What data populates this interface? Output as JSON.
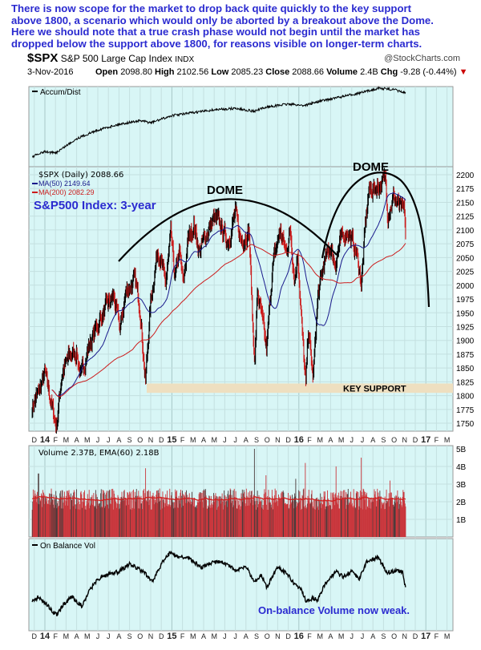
{
  "annotation_lines": [
    "There is now scope for the market to drop back quite quickly to the key support",
    "above 1800, a scenario which would only be aborted by a breakout above the Dome.",
    "Here we should note that a true crash phase would not begin until the market has",
    "dropped below the support above 1800, for reasons visible on longer-term charts."
  ],
  "header": {
    "symbol": "$SPX",
    "name": "S&P 500 Large Cap Index",
    "exchange": "INDX",
    "source": "@StockCharts.com",
    "date": "3-Nov-2016",
    "open_label": "Open",
    "open": "2098.80",
    "high_label": "High",
    "high": "2102.56",
    "low_label": "Low",
    "low": "2085.23",
    "close_label": "Close",
    "close": "2088.66",
    "volume_label": "Volume",
    "volume": "2.4B",
    "chg_label": "Chg",
    "chg": "-9.28 (-0.44%)",
    "chg_arrow": "▼"
  },
  "colors": {
    "panel_bg": "#d8f6f6",
    "price_up": "#000000",
    "price_down": "#cc1c1c",
    "ma50": "#1a1a8c",
    "ma200": "#cc1c1c",
    "annotation": "#2b2bd0",
    "support_band": "#eedfc0",
    "volume_bar": "#c9363c",
    "volume_dark": "#4a3a3a"
  },
  "chart_data": [
    {
      "type": "line",
      "title": "Accum/Dist",
      "x_unit": "months since Jan 2014",
      "points": [
        [
          -1.2,
          5
        ],
        [
          0,
          12
        ],
        [
          1,
          10
        ],
        [
          3,
          30
        ],
        [
          5,
          42
        ],
        [
          7,
          50
        ],
        [
          9,
          55
        ],
        [
          10,
          52
        ],
        [
          12,
          62
        ],
        [
          14,
          66
        ],
        [
          16,
          70
        ],
        [
          18,
          72
        ],
        [
          19.8,
          68
        ],
        [
          21,
          74
        ],
        [
          23,
          78
        ],
        [
          24.5,
          76
        ],
        [
          26,
          82
        ],
        [
          28,
          88
        ],
        [
          30,
          94
        ],
        [
          31.5,
          100
        ],
        [
          33,
          98
        ],
        [
          34.1,
          93
        ]
      ]
    },
    {
      "type": "bar",
      "title": "$SPX (Daily) 2088.66",
      "ma50_label": "MA(50) 2149.64",
      "ma200_label": "MA(200) 2082.29",
      "x_unit": "months since Jan 2014",
      "ylim": [
        1725,
        2210
      ],
      "yticks": [
        1750,
        1775,
        1800,
        1825,
        1850,
        1875,
        1900,
        1925,
        1950,
        1975,
        2000,
        2025,
        2050,
        2075,
        2100,
        2125,
        2150,
        2175,
        2200
      ],
      "closes": [
        [
          -1.2,
          1780
        ],
        [
          -0.5,
          1810
        ],
        [
          0,
          1840
        ],
        [
          0.9,
          1760
        ],
        [
          1.1,
          1745
        ],
        [
          1.6,
          1840
        ],
        [
          2.3,
          1870
        ],
        [
          3.0,
          1880
        ],
        [
          3.4,
          1830
        ],
        [
          4.0,
          1880
        ],
        [
          4.8,
          1920
        ],
        [
          5.5,
          1950
        ],
        [
          6.5,
          1980
        ],
        [
          7.1,
          1920
        ],
        [
          7.7,
          1990
        ],
        [
          8.5,
          2010
        ],
        [
          9.0,
          1960
        ],
        [
          9.5,
          1825
        ],
        [
          10.0,
          1970
        ],
        [
          10.7,
          2070
        ],
        [
          11.4,
          2000
        ],
        [
          11.9,
          2090
        ],
        [
          12.3,
          2010
        ],
        [
          12.7,
          2060
        ],
        [
          13.1,
          2000
        ],
        [
          13.5,
          2080
        ],
        [
          14.1,
          2110
        ],
        [
          14.6,
          2060
        ],
        [
          15.4,
          2100
        ],
        [
          16.0,
          2120
        ],
        [
          16.5,
          2110
        ],
        [
          17.3,
          2080
        ],
        [
          18.0,
          2130
        ],
        [
          18.5,
          2080
        ],
        [
          19.3,
          2100
        ],
        [
          19.7,
          1900
        ],
        [
          19.85,
          1870
        ],
        [
          20.1,
          1990
        ],
        [
          20.5,
          1940
        ],
        [
          20.95,
          1880
        ],
        [
          21.5,
          2030
        ],
        [
          22.2,
          2100
        ],
        [
          22.8,
          2060
        ],
        [
          23.2,
          2100
        ],
        [
          23.6,
          2010
        ],
        [
          23.9,
          2060
        ],
        [
          24.3,
          1920
        ],
        [
          24.65,
          1815
        ],
        [
          24.9,
          1920
        ],
        [
          25.35,
          1830
        ],
        [
          25.8,
          1980
        ],
        [
          26.4,
          2040
        ],
        [
          27.0,
          2070
        ],
        [
          27.4,
          2040
        ],
        [
          28.0,
          2080
        ],
        [
          28.6,
          2100
        ],
        [
          29.4,
          2060
        ],
        [
          29.8,
          2020
        ],
        [
          29.9,
          2000
        ],
        [
          30.3,
          2110
        ],
        [
          30.6,
          2170
        ],
        [
          31.5,
          2180
        ],
        [
          32.2,
          2190
        ],
        [
          32.4,
          2130
        ],
        [
          33.0,
          2160
        ],
        [
          33.5,
          2140
        ],
        [
          34.0,
          2130
        ],
        [
          34.1,
          2089
        ]
      ],
      "annotations": {
        "dome1": "DOME",
        "dome2": "DOME",
        "subtitle": "S&P500 Index: 3-year",
        "support_label": "KEY SUPPORT",
        "support_range": [
          1805,
          1822
        ]
      }
    },
    {
      "type": "bar",
      "title": "Volume 2.37B, EMA(60) 2.18B",
      "unit": "B",
      "yticks": [
        "1B",
        "2B",
        "3B",
        "4B",
        "5B"
      ],
      "typical": 2.2,
      "spikes": [
        [
          -0.6,
          3.6
        ],
        [
          9.5,
          3.9
        ],
        [
          19.8,
          5.0
        ],
        [
          20.9,
          3.5
        ],
        [
          23.7,
          3.3
        ],
        [
          24.6,
          4.2
        ],
        [
          27.5,
          4.0
        ],
        [
          29.9,
          4.5
        ],
        [
          32.6,
          3.2
        ]
      ]
    },
    {
      "type": "line",
      "title": "On Balance Vol",
      "note": "On-balance Volume now weak.",
      "points": [
        [
          -1.2,
          25
        ],
        [
          -0.6,
          32
        ],
        [
          0,
          24
        ],
        [
          1.1,
          8
        ],
        [
          1.8,
          22
        ],
        [
          2.5,
          32
        ],
        [
          3.5,
          20
        ],
        [
          4.2,
          40
        ],
        [
          5,
          55
        ],
        [
          6,
          62
        ],
        [
          7,
          65
        ],
        [
          8,
          75
        ],
        [
          9.3,
          65
        ],
        [
          10.2,
          52
        ],
        [
          11.2,
          80
        ],
        [
          12,
          92
        ],
        [
          12.3,
          85
        ],
        [
          13.5,
          84
        ],
        [
          14.8,
          70
        ],
        [
          16,
          78
        ],
        [
          17,
          77
        ],
        [
          18,
          66
        ],
        [
          19,
          72
        ],
        [
          19.8,
          52
        ],
        [
          20.5,
          60
        ],
        [
          20.95,
          44
        ],
        [
          22,
          72
        ],
        [
          23,
          60
        ],
        [
          23.6,
          48
        ],
        [
          24.3,
          40
        ],
        [
          24.7,
          25
        ],
        [
          25.3,
          30
        ],
        [
          25.8,
          28
        ],
        [
          26.5,
          50
        ],
        [
          27.5,
          65
        ],
        [
          28.2,
          58
        ],
        [
          29,
          66
        ],
        [
          29.7,
          55
        ],
        [
          30.4,
          78
        ],
        [
          31.5,
          84
        ],
        [
          32.3,
          64
        ],
        [
          33.2,
          66
        ],
        [
          33.8,
          65
        ],
        [
          34.1,
          42
        ]
      ]
    }
  ],
  "x_axis": {
    "labels": [
      "D",
      "14",
      "F",
      "M",
      "A",
      "M",
      "J",
      "J",
      "A",
      "S",
      "O",
      "N",
      "D",
      "15",
      "F",
      "M",
      "A",
      "M",
      "J",
      "J",
      "A",
      "S",
      "O",
      "N",
      "D",
      "16",
      "F",
      "M",
      "A",
      "M",
      "J",
      "J",
      "A",
      "S",
      "O",
      "N",
      "D",
      "17",
      "F",
      "M"
    ],
    "year_labels": [
      "14",
      "15",
      "16",
      "17"
    ]
  }
}
